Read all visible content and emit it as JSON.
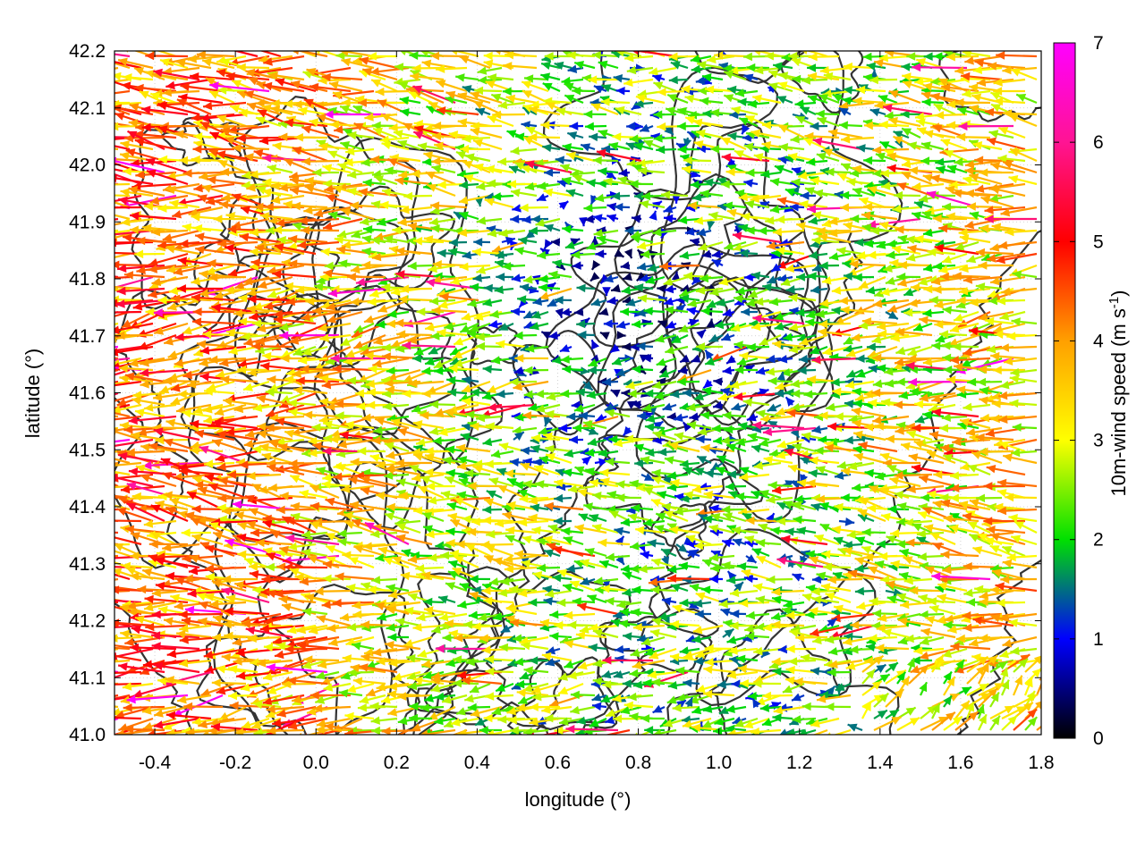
{
  "chart_data": {
    "type": "vector-field",
    "xlabel": "longitude (°)",
    "ylabel": "latitude (°)",
    "xlim": [
      -0.5,
      1.8
    ],
    "ylim": [
      41.0,
      42.2
    ],
    "x_ticks": [
      "-0.4",
      "-0.2",
      "0.0",
      "0.2",
      "0.4",
      "0.6",
      "0.8",
      "1.0",
      "1.2",
      "1.4",
      "1.6",
      "1.8"
    ],
    "y_ticks": [
      "41.0",
      "41.1",
      "41.2",
      "41.3",
      "41.4",
      "41.5",
      "41.6",
      "41.7",
      "41.8",
      "41.9",
      "42.0",
      "42.1",
      "42.2"
    ],
    "grid": true,
    "colorbar": {
      "label_main": "10m-wind speed (m s",
      "label_sup": "-1",
      "label_end": ")",
      "ticks": [
        "0",
        "1",
        "2",
        "3",
        "4",
        "5",
        "6",
        "7"
      ],
      "range": [
        0,
        7
      ],
      "colors": [
        "#000000",
        "#0000ff",
        "#00e000",
        "#ffff00",
        "#ffa000",
        "#ff0000",
        "#ff00ff"
      ]
    },
    "contour_color": "#333333"
  }
}
